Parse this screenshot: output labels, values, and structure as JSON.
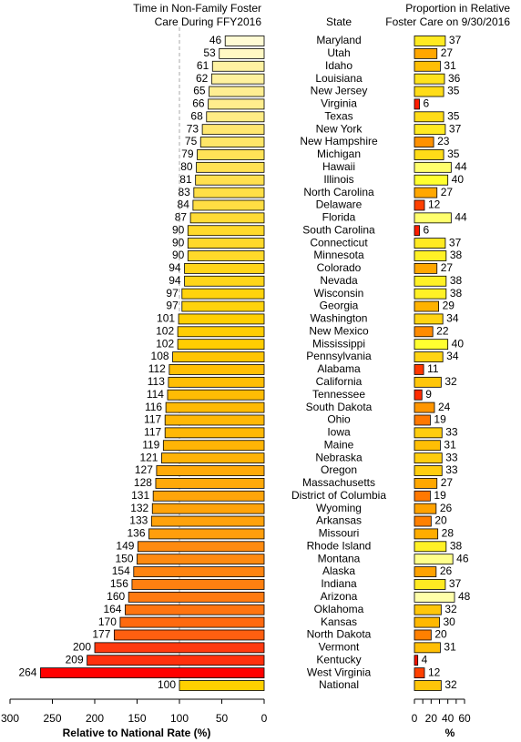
{
  "chart_data": {
    "type": "bar",
    "orientation": "horizontal",
    "categories_title": "State",
    "categories": [
      "Maryland",
      "Utah",
      "Idaho",
      "Louisiana",
      "New Jersey",
      "Virginia",
      "Texas",
      "New York",
      "New Hampshire",
      "Michigan",
      "Hawaii",
      "Illinois",
      "North Carolina",
      "Delaware",
      "Florida",
      "South Carolina",
      "Connecticut",
      "Minnesota",
      "Colorado",
      "Nevada",
      "Wisconsin",
      "Georgia",
      "Washington",
      "New Mexico",
      "Mississippi",
      "Pennsylvania",
      "Alabama",
      "California",
      "Tennessee",
      "South Dakota",
      "Ohio",
      "Iowa",
      "Maine",
      "Nebraska",
      "Oregon",
      "Massachusetts",
      "District of Columbia",
      "Wyoming",
      "Arkansas",
      "Missouri",
      "Rhode Island",
      "Montana",
      "Alaska",
      "Indiana",
      "Arizona",
      "Oklahoma",
      "Kansas",
      "North Dakota",
      "Vermont",
      "Kentucky",
      "West Virginia",
      "National"
    ],
    "panels": [
      {
        "title": [
          "Time in Non-Family Foster",
          "Care During FFY2016"
        ],
        "xlabel": "Relative to National Rate (%)",
        "xlim": [
          300,
          0
        ],
        "xticks": [
          300,
          250,
          200,
          150,
          100,
          50,
          0
        ],
        "reference_line": 100,
        "color_stops": [
          "#ffffff",
          "#fffbd0",
          "#ffd000",
          "#ff8a10",
          "#ff3a10",
          "#ff0000",
          "#ff0000"
        ],
        "values": [
          46,
          53,
          61,
          62,
          65,
          66,
          68,
          73,
          75,
          79,
          80,
          81,
          83,
          84,
          87,
          90,
          90,
          90,
          94,
          94,
          97,
          97,
          101,
          102,
          102,
          108,
          112,
          113,
          114,
          116,
          117,
          117,
          119,
          121,
          127,
          128,
          131,
          132,
          133,
          136,
          149,
          150,
          154,
          156,
          160,
          164,
          170,
          177,
          200,
          209,
          264,
          100
        ]
      },
      {
        "title": [
          "Proportion in Relative",
          "Foster Care on 9/30/2016"
        ],
        "xlabel": "%",
        "xlim": [
          0,
          60
        ],
        "xticks": [
          0,
          20,
          40,
          60
        ],
        "minor_xticks": [
          10,
          30,
          50
        ],
        "color_stops": [
          "#ff0000",
          "#ff3000",
          "#ff8000",
          "#ffb800",
          "#ffff30",
          "#ffffc8",
          "#ffffff"
        ],
        "values": [
          37,
          27,
          31,
          36,
          35,
          6,
          35,
          37,
          23,
          35,
          44,
          40,
          27,
          12,
          44,
          6,
          37,
          38,
          27,
          38,
          38,
          29,
          34,
          22,
          40,
          34,
          11,
          32,
          9,
          24,
          19,
          33,
          31,
          33,
          33,
          27,
          19,
          26,
          20,
          28,
          38,
          46,
          26,
          37,
          48,
          32,
          30,
          20,
          31,
          4,
          12,
          32
        ]
      }
    ]
  }
}
